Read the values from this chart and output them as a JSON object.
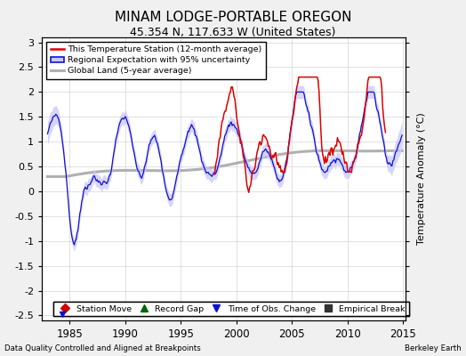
{
  "title": "MINAM LODGE-PORTABLE OREGON",
  "subtitle": "45.354 N, 117.633 W (United States)",
  "xlabel_left": "Data Quality Controlled and Aligned at Breakpoints",
  "xlabel_right": "Berkeley Earth",
  "ylabel": "Temperature Anomaly (°C)",
  "xlim": [
    1982.5,
    2015.2
  ],
  "ylim": [
    -2.6,
    3.1
  ],
  "yticks": [
    -2.5,
    -2,
    -1.5,
    -1,
    -0.5,
    0,
    0.5,
    1,
    1.5,
    2,
    2.5,
    3
  ],
  "xticks": [
    1985,
    1990,
    1995,
    2000,
    2005,
    2010,
    2015
  ],
  "background_color": "#f0f0f0",
  "plot_bg_color": "#ffffff",
  "station_color": "#dd0000",
  "regional_color": "#1111cc",
  "regional_fill_color": "#c8c8ff",
  "global_color": "#b0b0b0",
  "legend_entries": [
    "This Temperature Station (12-month average)",
    "Regional Expectation with 95% uncertainty",
    "Global Land (5-year average)"
  ],
  "bottom_legend": [
    {
      "label": "Station Move",
      "color": "#cc0000",
      "marker": "D"
    },
    {
      "label": "Record Gap",
      "color": "#006600",
      "marker": "^"
    },
    {
      "label": "Time of Obs. Change",
      "color": "#1111cc",
      "marker": "v"
    },
    {
      "label": "Empirical Break",
      "color": "#333333",
      "marker": "s"
    }
  ],
  "time_obs_change_x": 1984.3,
  "title_fontsize": 11,
  "subtitle_fontsize": 9
}
